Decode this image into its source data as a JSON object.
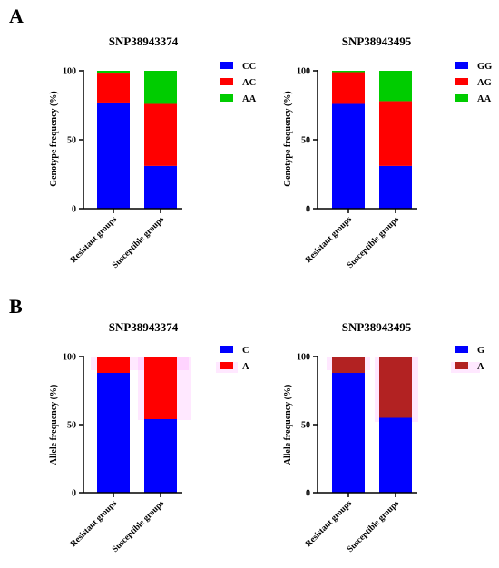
{
  "panels": [
    {
      "letter": "A"
    },
    {
      "letter": "B"
    }
  ],
  "colors": {
    "blue": "#0000ff",
    "red": "#ff0000",
    "green": "#00cc00",
    "dark_red": "#b22222",
    "highlight": "#ff66ff"
  },
  "chart_data": [
    {
      "type": "bar",
      "stacked": true,
      "panel": "A",
      "title": "SNP38943374",
      "ylabel": "Genotype frequency (%)",
      "ylim": [
        0,
        100
      ],
      "yticks": [
        0,
        50,
        100
      ],
      "categories": [
        "Resistant groups",
        "Susceptible groups"
      ],
      "series": [
        {
          "name": "CC",
          "color": "#0000ff",
          "values": [
            77,
            31
          ]
        },
        {
          "name": "AC",
          "color": "#ff0000",
          "values": [
            21,
            45
          ]
        },
        {
          "name": "AA",
          "color": "#00cc00",
          "values": [
            2,
            24
          ]
        }
      ],
      "legend_position": "right"
    },
    {
      "type": "bar",
      "stacked": true,
      "panel": "A",
      "title": "SNP38943495",
      "ylabel": "Genotype frequency (%)",
      "ylim": [
        0,
        100
      ],
      "yticks": [
        0,
        50,
        100
      ],
      "categories": [
        "Resistant groups",
        "Susceptible groups"
      ],
      "series": [
        {
          "name": "GG",
          "color": "#0000ff",
          "values": [
            76,
            31
          ]
        },
        {
          "name": "AG",
          "color": "#ff0000",
          "values": [
            23,
            47
          ]
        },
        {
          "name": "AA",
          "color": "#00cc00",
          "values": [
            1,
            22
          ]
        }
      ],
      "legend_position": "right"
    },
    {
      "type": "bar",
      "stacked": true,
      "panel": "B",
      "title": "SNP38943374",
      "ylabel": "Allele frequency (%)",
      "ylim": [
        0,
        100
      ],
      "yticks": [
        0,
        50,
        100
      ],
      "categories": [
        "Resistant groups",
        "Susceptible groups"
      ],
      "series": [
        {
          "name": "C",
          "color": "#0000ff",
          "values": [
            88,
            54
          ]
        },
        {
          "name": "A",
          "color": "#ff0000",
          "values": [
            12,
            46
          ]
        }
      ],
      "legend_position": "right"
    },
    {
      "type": "bar",
      "stacked": true,
      "panel": "B",
      "title": "SNP38943495",
      "ylabel": "Allele frequency (%)",
      "ylim": [
        0,
        100
      ],
      "yticks": [
        0,
        50,
        100
      ],
      "categories": [
        "Resistant groups",
        "Susceptible groups"
      ],
      "series": [
        {
          "name": "G",
          "color": "#0000ff",
          "values": [
            88,
            55
          ]
        },
        {
          "name": "A",
          "color": "#b22222",
          "values": [
            12,
            45
          ]
        }
      ],
      "legend_position": "right"
    }
  ]
}
